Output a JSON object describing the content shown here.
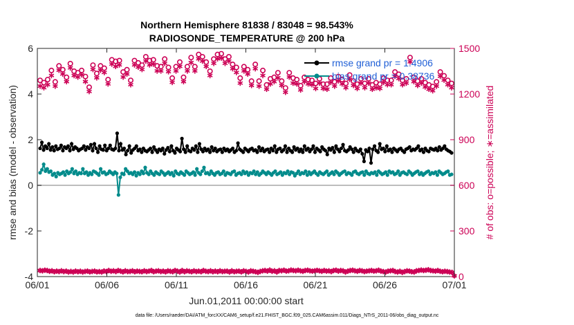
{
  "chart_data": {
    "type": "line",
    "title_line1": "Northern Hemisphere 81838 / 83048 = 98.543%",
    "title_line2": "RADIOSONDE_TEMPERATURE @ 200 hPa",
    "ylabel_left": "rmse and bias (model - observation)",
    "ylabel_right": "# of obs: o=possible; ∗=assimilated",
    "xlabel": "Jun.01,2011 00:00:00 start",
    "footnote": "data file: /Users/raeder/DAI/ATM_forcXX/CAM6_setup/f.e21.FHIST_BGC.f09_025.CAM6assim.011/Diags_NTrS_2011-06/obs_diag_output.nc",
    "x_ticks": [
      "06/01",
      "06/06",
      "06/11",
      "06/16",
      "06/21",
      "06/26",
      "07/01"
    ],
    "y_left_ticks": [
      "-4",
      "-2",
      "0",
      "2",
      "4",
      "6"
    ],
    "y_right_ticks": [
      "0",
      "300",
      "600",
      "900",
      "1200",
      "1500"
    ],
    "ylim_left": [
      -4,
      6
    ],
    "ylim_right": [
      0,
      1500
    ],
    "xlim_days": [
      0,
      30
    ],
    "zero_line": 0,
    "legend": [
      {
        "name": "rmse grand pr = 1.4906",
        "color": "#000000"
      },
      {
        "name": "bias grand pr = 0.38736",
        "color": "#008b8b"
      }
    ],
    "colors": {
      "rmse": "#000000",
      "bias": "#008b8b",
      "obs": "#cc0055",
      "zero": "#bdbdbd",
      "legend_text": "#1f5fd6"
    },
    "series": [
      {
        "name": "rmse",
        "axis": "left",
        "values": [
          1.62,
          1.88,
          1.55,
          1.72,
          1.62,
          1.82,
          1.55,
          1.68,
          1.52,
          1.72,
          1.58,
          1.62,
          1.75,
          1.52,
          1.68,
          1.62,
          1.72,
          1.52,
          1.82,
          1.58,
          1.68,
          1.62,
          1.52,
          1.58,
          1.62,
          1.72,
          1.55,
          1.68,
          1.62,
          1.78,
          1.52,
          1.82,
          1.62,
          1.45,
          1.72,
          1.58,
          1.55,
          1.75,
          1.52,
          1.62,
          1.75,
          1.58,
          1.55,
          1.62,
          2.28,
          1.52,
          1.82,
          1.55,
          1.62,
          1.35,
          1.52,
          1.72,
          1.42,
          1.55,
          1.62,
          1.72,
          1.52,
          1.58,
          1.45,
          1.62,
          1.52,
          1.48,
          1.55,
          1.62,
          1.45,
          1.68,
          1.55,
          1.45,
          1.58,
          1.52,
          1.62,
          1.38,
          1.55,
          1.65,
          1.48,
          1.72,
          1.52,
          1.42,
          1.62,
          1.55,
          1.48,
          2.05,
          1.58,
          1.45,
          1.72,
          1.52,
          1.48,
          1.62,
          1.55,
          1.72,
          1.45,
          1.82,
          1.58,
          1.48,
          1.62,
          1.52,
          1.58,
          1.45,
          1.68,
          1.52,
          1.62,
          1.48,
          1.55,
          1.58,
          1.45,
          1.62,
          1.52,
          1.58,
          1.48,
          1.55,
          1.62,
          1.45,
          1.52,
          1.85,
          1.58,
          1.52,
          1.45,
          1.62,
          1.55,
          1.48,
          1.58,
          1.62,
          1.52,
          1.55,
          1.45,
          1.68,
          1.52,
          1.62,
          1.48,
          1.55,
          1.58,
          1.45,
          1.62,
          1.52,
          1.72,
          1.45,
          1.58,
          1.62,
          1.48,
          1.55,
          1.72,
          1.45,
          1.62,
          1.52,
          1.45,
          1.68,
          1.55,
          1.62,
          1.48,
          1.58,
          1.45,
          1.72,
          1.55,
          1.62,
          1.48,
          1.58,
          1.72,
          1.45,
          1.62,
          1.55,
          1.48,
          1.68,
          1.58,
          1.52,
          1.35,
          1.62,
          1.55,
          1.65,
          1.45,
          1.72,
          1.58,
          1.48,
          1.62,
          1.78,
          1.52,
          1.48,
          1.55,
          1.68,
          1.58,
          1.45,
          1.62,
          1.52,
          1.48,
          1.58,
          1.38,
          1.05,
          1.55,
          1.48,
          1.62,
          0.98,
          1.58,
          1.72,
          1.52,
          1.45,
          1.82,
          1.58,
          1.62,
          1.48,
          1.72,
          1.52,
          1.58,
          1.45,
          1.62,
          1.55,
          1.48,
          1.58,
          1.62,
          1.52,
          1.45,
          1.58,
          1.62,
          1.68,
          1.52,
          1.58,
          1.55,
          1.62,
          1.72,
          1.52,
          1.58,
          1.45,
          1.62,
          1.52,
          1.48,
          1.62,
          1.58,
          1.55,
          1.62,
          1.52,
          1.68,
          1.55,
          1.62,
          1.72,
          1.58,
          1.52,
          1.48,
          1.42
        ]
      },
      {
        "name": "bias",
        "axis": "left",
        "values": [
          0.55,
          0.68,
          0.92,
          0.62,
          0.72,
          0.58,
          0.62,
          0.45,
          0.52,
          0.38,
          0.55,
          0.48,
          0.52,
          0.58,
          0.45,
          0.62,
          0.52,
          0.58,
          0.72,
          0.52,
          0.62,
          0.48,
          0.55,
          0.52,
          0.72,
          0.52,
          0.58,
          0.45,
          0.55,
          0.48,
          0.62,
          0.58,
          0.52,
          0.45,
          0.72,
          0.55,
          0.58,
          0.48,
          0.52,
          0.62,
          0.55,
          0.48,
          0.58,
          0.52,
          -0.42,
          0.35,
          0.52,
          0.48,
          0.72,
          0.62,
          0.52,
          0.55,
          0.48,
          0.58,
          0.42,
          0.55,
          0.48,
          0.62,
          0.52,
          0.78,
          0.55,
          0.48,
          0.62,
          0.52,
          0.45,
          0.58,
          0.52,
          0.48,
          0.62,
          0.55,
          0.45,
          0.52,
          0.58,
          0.48,
          0.55,
          0.42,
          0.62,
          0.52,
          0.48,
          0.58,
          0.52,
          0.45,
          0.62,
          0.55,
          0.48,
          0.52,
          0.58,
          0.45,
          0.72,
          0.55,
          0.48,
          0.62,
          0.78,
          0.52,
          0.55,
          0.48,
          0.62,
          0.52,
          0.45,
          0.55,
          0.58,
          0.48,
          0.52,
          0.62,
          0.45,
          0.55,
          0.52,
          0.48,
          0.58,
          0.62,
          0.45,
          0.52,
          0.55,
          0.48,
          0.62,
          0.52,
          0.58,
          0.45,
          0.55,
          0.52,
          0.62,
          0.48,
          0.58,
          0.45,
          0.52,
          0.62,
          0.55,
          0.48,
          0.58,
          0.52,
          0.45,
          0.55,
          0.62,
          0.48,
          0.52,
          0.58,
          0.45,
          0.55,
          0.52,
          0.62,
          0.48,
          0.58,
          0.55,
          0.42,
          0.52,
          0.62,
          0.48,
          0.55,
          0.52,
          0.62,
          0.45,
          0.58,
          0.48,
          0.55,
          0.62,
          0.52,
          0.45,
          0.58,
          0.52,
          0.48,
          0.55,
          0.62,
          0.45,
          0.52,
          0.58,
          0.48,
          0.62,
          0.55,
          0.45,
          0.52,
          0.58,
          0.62,
          0.48,
          0.55,
          0.52,
          0.45,
          0.58,
          0.62,
          0.52,
          0.48,
          0.55,
          0.58,
          0.45,
          0.62,
          0.52,
          0.48,
          0.55,
          0.52,
          0.58,
          0.45,
          0.62,
          0.55,
          0.48,
          0.52,
          0.58,
          0.45,
          0.62,
          0.55,
          0.58,
          0.48,
          0.52,
          0.62,
          0.45,
          0.55,
          0.58,
          0.52,
          0.48,
          0.62,
          0.55,
          0.45,
          0.52,
          0.58,
          0.62,
          0.48,
          0.55,
          0.45,
          0.52,
          0.58,
          0.62,
          0.48,
          0.55,
          0.52,
          0.58,
          0.45,
          0.62,
          0.55,
          0.48,
          0.52,
          0.58,
          0.62,
          0.45,
          0.48
        ]
      },
      {
        "name": "obs_possible",
        "axis": "right",
        "values": [
          1290,
          1275,
          1295,
          1355,
          1280,
          1385,
          1360,
          1310,
          1400,
          1350,
          1340,
          1355,
          1315,
          1245,
          1390,
          1335,
          1385,
          1370,
          1295,
          1425,
          1415,
          1420,
          1345,
          1360,
          1290,
          1420,
          1405,
          1390,
          1445,
          1420,
          1425,
          1385,
          1380,
          1430,
          1375,
          1305,
          1380,
          1410,
          1310,
          1380,
          1440,
          1380,
          1460,
          1445,
          1410,
          1350,
          1430,
          1460,
          1465,
          1430,
          1445,
          1395,
          1375,
          1305,
          1380,
          1360,
          1285,
          1395,
          1285,
          1355,
          1260,
          1300,
          1310,
          1340,
          1285,
          1240,
          1340,
          1305,
          1295,
          1255,
          1310,
          1295,
          1290,
          1270,
          1300,
          1265,
          1265,
          1305,
          1280,
          1315,
          1295,
          1270,
          1325,
          1285,
          1265,
          1300,
          1270,
          1300,
          1260,
          1275,
          1265,
          1305,
          1290,
          1290,
          1345,
          1330,
          1290,
          1300,
          1440,
          1310,
          1285,
          1300,
          1275,
          1260,
          1250,
          1280,
          1345,
          1320,
          1290,
          1270
        ],
        "offset": 0
      },
      {
        "name": "obs_assimilated",
        "axis": "right",
        "values": [
          1270,
          1260,
          1280,
          1340,
          1270,
          1375,
          1350,
          1300,
          1390,
          1340,
          1330,
          1345,
          1300,
          1235,
          1380,
          1325,
          1375,
          1360,
          1285,
          1415,
          1400,
          1410,
          1330,
          1350,
          1280,
          1410,
          1395,
          1380,
          1435,
          1410,
          1415,
          1370,
          1370,
          1420,
          1365,
          1295,
          1370,
          1400,
          1300,
          1370,
          1425,
          1370,
          1450,
          1435,
          1400,
          1340,
          1420,
          1450,
          1455,
          1420,
          1435,
          1385,
          1360,
          1290,
          1370,
          1350,
          1275,
          1385,
          1270,
          1340,
          1250,
          1285,
          1300,
          1325,
          1275,
          1230,
          1330,
          1290,
          1285,
          1245,
          1300,
          1285,
          1280,
          1255,
          1290,
          1255,
          1250,
          1295,
          1270,
          1305,
          1285,
          1260,
          1315,
          1275,
          1255,
          1290,
          1260,
          1290,
          1250,
          1260,
          1255,
          1295,
          1280,
          1280,
          1335,
          1320,
          1280,
          1290,
          1430,
          1300,
          1275,
          1290,
          1265,
          1250,
          1240,
          1270,
          1335,
          1310,
          1280,
          1260
        ]
      },
      {
        "name": "obs_bottom",
        "axis": "right",
        "values": [
          40,
          38,
          42,
          40,
          35,
          38,
          32,
          36,
          33,
          38,
          33,
          36,
          30,
          34,
          30,
          36,
          32,
          35,
          30,
          34,
          36,
          31,
          34,
          36,
          31,
          33,
          30,
          37,
          33,
          40,
          35,
          38,
          33,
          40,
          36,
          31,
          38,
          33,
          34,
          38,
          32,
          36,
          34,
          32,
          38,
          33,
          36,
          40,
          32,
          36,
          38,
          33,
          36,
          31,
          38,
          35,
          32,
          40,
          36,
          30,
          40,
          32,
          38,
          35,
          32,
          38,
          33,
          36,
          32,
          40,
          35,
          33,
          38,
          32,
          36,
          32,
          38,
          33,
          35,
          36,
          30,
          38,
          32,
          35,
          36,
          31,
          38,
          34,
          30,
          38,
          35,
          32,
          28,
          34,
          38,
          40,
          36,
          43,
          35,
          38,
          30,
          40,
          38,
          42,
          36,
          38,
          43,
          40,
          38,
          42,
          38,
          35,
          40,
          42,
          38,
          36,
          38,
          41,
          38,
          35,
          40,
          36,
          38,
          33,
          40,
          42,
          36,
          40,
          38,
          30,
          36,
          40,
          42,
          38,
          35,
          40,
          38,
          33,
          36,
          38,
          40,
          36,
          38,
          42,
          36,
          33,
          30,
          36,
          38,
          40,
          33,
          30,
          35,
          28,
          33,
          38,
          36,
          32,
          30,
          38,
          40,
          43,
          40,
          42,
          45,
          40,
          38,
          36,
          40,
          35,
          32,
          35,
          33,
          30,
          28,
          5
        ]
      }
    ]
  }
}
